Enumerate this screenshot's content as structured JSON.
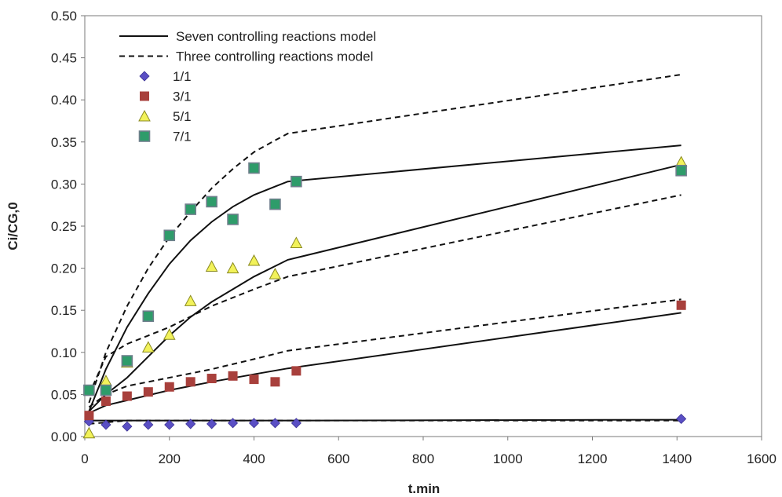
{
  "chart_data": {
    "type": "scatter",
    "xlabel": "t.min",
    "ylabel": "Ci/CG,0",
    "xlim": [
      0,
      1600
    ],
    "ylim": [
      0,
      0.5
    ],
    "xticks": [
      "0",
      "200",
      "400",
      "600",
      "800",
      "1000",
      "1200",
      "1400",
      "1600"
    ],
    "yticks": [
      "0.00",
      "0.05",
      "0.10",
      "0.15",
      "0.20",
      "0.25",
      "0.30",
      "0.35",
      "0.40",
      "0.45",
      "0.50"
    ],
    "grid": false,
    "legend_position": "top-left",
    "legend": [
      {
        "label": "Seven controlling reactions model",
        "kind": "solid-line"
      },
      {
        "label": "Three controlling reactions model",
        "kind": "dashed-line"
      },
      {
        "label": "1/1",
        "kind": "diamond"
      },
      {
        "label": "3/1",
        "kind": "square"
      },
      {
        "label": "5/1",
        "kind": "triangle"
      },
      {
        "label": "7/1",
        "kind": "square"
      }
    ],
    "series": [
      {
        "name": "1/1",
        "marker": "diamond",
        "color": "#5a4fc4",
        "x": [
          10,
          50,
          100,
          150,
          200,
          250,
          300,
          350,
          400,
          450,
          500,
          1410
        ],
        "y": [
          0.018,
          0.014,
          0.012,
          0.014,
          0.014,
          0.015,
          0.015,
          0.016,
          0.016,
          0.016,
          0.016,
          0.021
        ]
      },
      {
        "name": "3/1",
        "marker": "square",
        "color": "#a8403c",
        "x": [
          10,
          50,
          100,
          150,
          200,
          250,
          300,
          350,
          400,
          450,
          500,
          1410
        ],
        "y": [
          0.025,
          0.042,
          0.048,
          0.053,
          0.059,
          0.065,
          0.069,
          0.072,
          0.068,
          0.065,
          0.078,
          0.156
        ]
      },
      {
        "name": "5/1",
        "marker": "triangle",
        "color": "#f2f25a",
        "x": [
          10,
          50,
          100,
          150,
          200,
          250,
          300,
          350,
          400,
          450,
          500,
          1410
        ],
        "y": [
          0.004,
          0.066,
          0.088,
          0.106,
          0.121,
          0.161,
          0.202,
          0.2,
          0.209,
          0.193,
          0.23,
          0.326
        ]
      },
      {
        "name": "7/1",
        "marker": "square",
        "color": "#2e9c6a",
        "x": [
          10,
          50,
          100,
          150,
          200,
          250,
          300,
          350,
          400,
          450,
          500,
          1410
        ],
        "y": [
          0.055,
          0.055,
          0.09,
          0.143,
          0.239,
          0.27,
          0.279,
          0.258,
          0.319,
          0.276,
          0.303,
          0.316
        ]
      }
    ],
    "model_curves": [
      {
        "model": "seven",
        "style": "solid",
        "x": [
          10,
          100,
          200,
          300,
          400,
          480,
          1410
        ],
        "y": [
          0.019,
          0.019,
          0.019,
          0.019,
          0.019,
          0.019,
          0.02
        ]
      },
      {
        "model": "three",
        "style": "dashed",
        "x": [
          10,
          100,
          200,
          300,
          400,
          480,
          1410
        ],
        "y": [
          0.015,
          0.019,
          0.019,
          0.019,
          0.019,
          0.019,
          0.019
        ]
      },
      {
        "model": "seven",
        "style": "solid",
        "x": [
          10,
          50,
          100,
          200,
          300,
          400,
          480,
          1410
        ],
        "y": [
          0.028,
          0.037,
          0.043,
          0.055,
          0.065,
          0.074,
          0.081,
          0.147
        ]
      },
      {
        "model": "three",
        "style": "dashed",
        "x": [
          10,
          50,
          100,
          200,
          300,
          400,
          480,
          1410
        ],
        "y": [
          0.035,
          0.05,
          0.06,
          0.07,
          0.08,
          0.092,
          0.102,
          0.163
        ]
      },
      {
        "model": "seven",
        "style": "solid",
        "x": [
          10,
          50,
          100,
          150,
          200,
          250,
          300,
          350,
          400,
          480,
          1410
        ],
        "y": [
          0.03,
          0.05,
          0.07,
          0.095,
          0.12,
          0.142,
          0.16,
          0.175,
          0.19,
          0.21,
          0.323
        ]
      },
      {
        "model": "three",
        "style": "dashed",
        "x": [
          10,
          50,
          100,
          150,
          200,
          300,
          400,
          480,
          1410
        ],
        "y": [
          0.05,
          0.095,
          0.11,
          0.12,
          0.13,
          0.155,
          0.175,
          0.19,
          0.287
        ]
      },
      {
        "model": "seven",
        "style": "solid",
        "x": [
          10,
          50,
          100,
          150,
          200,
          250,
          300,
          350,
          400,
          450,
          480,
          1410
        ],
        "y": [
          0.03,
          0.08,
          0.13,
          0.17,
          0.205,
          0.233,
          0.255,
          0.273,
          0.287,
          0.297,
          0.303,
          0.346
        ]
      },
      {
        "model": "three",
        "style": "dashed",
        "x": [
          10,
          50,
          100,
          150,
          200,
          250,
          300,
          350,
          400,
          450,
          480,
          1410
        ],
        "y": [
          0.04,
          0.1,
          0.155,
          0.2,
          0.237,
          0.267,
          0.295,
          0.318,
          0.338,
          0.352,
          0.36,
          0.43
        ]
      }
    ]
  }
}
